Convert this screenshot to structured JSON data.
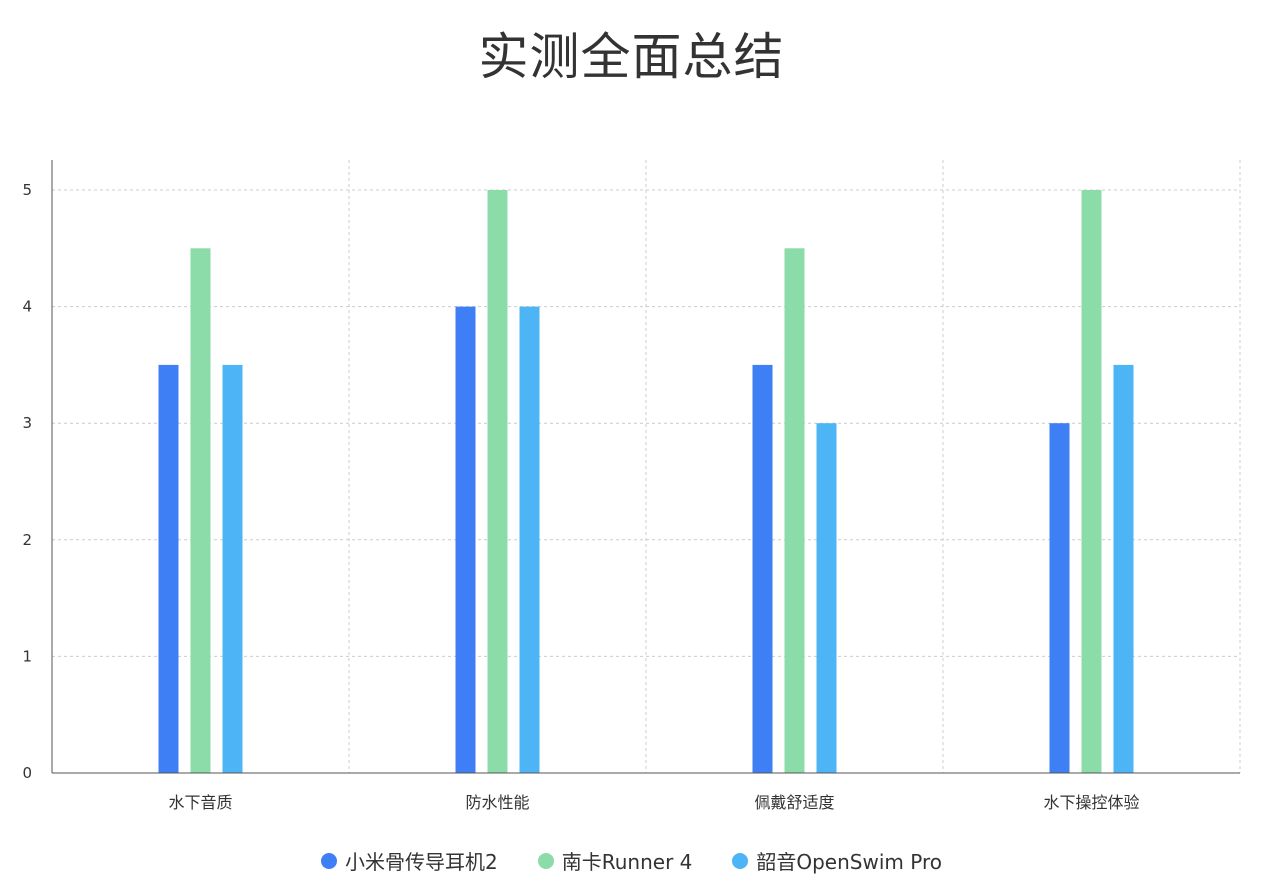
{
  "title": "实测全面总结",
  "chart_data": {
    "type": "bar",
    "title": "实测全面总结",
    "categories": [
      "水下音质",
      "防水性能",
      "佩戴舒适度",
      "水下操控体验"
    ],
    "series": [
      {
        "name": "小米骨传导耳机2",
        "color": "#3f7ff5",
        "values": [
          3.5,
          4,
          3.5,
          3
        ]
      },
      {
        "name": "南卡Runner 4",
        "color": "#8bdca8",
        "values": [
          4.5,
          5,
          4.5,
          5
        ]
      },
      {
        "name": "韶音OpenSwim Pro",
        "color": "#4db5f5",
        "values": [
          3.5,
          4,
          3,
          3.5
        ]
      }
    ],
    "ylim": [
      0,
      5
    ],
    "yticks": [
      0,
      1,
      2,
      3,
      4,
      5
    ],
    "grid": true,
    "legend_position": "bottom-center",
    "xlabel": "",
    "ylabel": ""
  }
}
